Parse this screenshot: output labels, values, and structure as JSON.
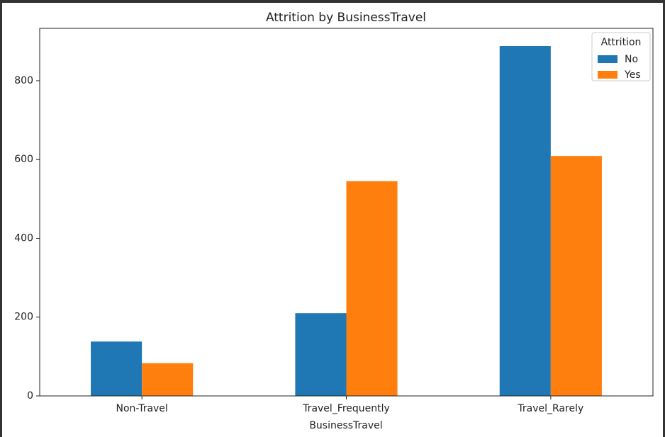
{
  "chart_data": {
    "type": "bar",
    "title": "Attrition by BusinessTravel",
    "x_label": "BusinessTravel",
    "categories": [
      "Non-Travel",
      "Travel_Frequently",
      "Travel_Rarely"
    ],
    "series": [
      {
        "name": "No",
        "color": "#1f77b4",
        "values": [
          138,
          210,
          888
        ]
      },
      {
        "name": "Yes",
        "color": "#ff7f0e",
        "values": [
          83,
          545,
          609
        ]
      }
    ],
    "legend_title": "Attrition",
    "legend": "upper right",
    "ylim": [
      0,
      933
    ],
    "yticks": [
      0,
      200,
      400,
      600,
      800
    ],
    "grid": false
  }
}
